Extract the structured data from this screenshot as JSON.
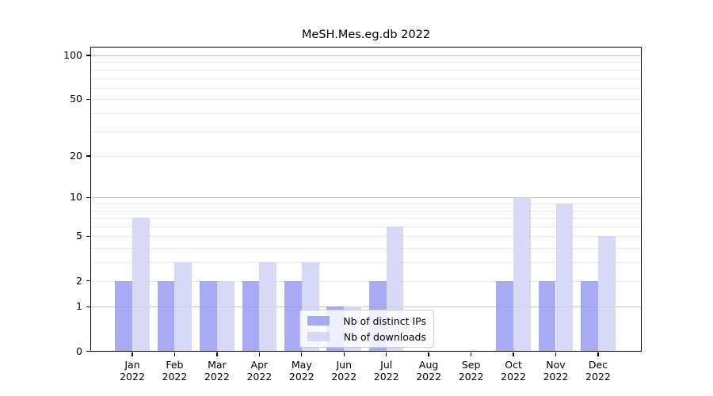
{
  "chart_data": {
    "type": "bar",
    "title": "MeSH.Mes.eg.db 2022",
    "categories": [
      "Jan",
      "Feb",
      "Mar",
      "Apr",
      "May",
      "Jun",
      "Jul",
      "Aug",
      "Sep",
      "Oct",
      "Nov",
      "Dec"
    ],
    "x_tick_second_line": "2022",
    "series": [
      {
        "name": "Nb of distinct IPs",
        "color": "rgba(146,150,240,0.8)",
        "values": [
          2,
          2,
          2,
          2,
          2,
          1,
          2,
          0,
          0,
          2,
          2,
          2
        ]
      },
      {
        "name": "Nb of downloads",
        "color": "rgba(205,208,245,0.8)",
        "values": [
          7,
          3,
          2,
          3,
          3,
          1,
          6,
          0,
          0,
          10,
          9,
          5
        ]
      }
    ],
    "y_axis": {
      "scale": "log1p",
      "ylim": [
        0,
        100
      ],
      "labeled_ticks": [
        0,
        1,
        2,
        5,
        10,
        20,
        50,
        100
      ],
      "major_gridlines": [
        1,
        10,
        100
      ],
      "minor_gridlines": [
        2,
        3,
        4,
        5,
        6,
        7,
        8,
        9,
        20,
        30,
        40,
        50,
        60,
        70,
        80,
        90
      ]
    },
    "legend": {
      "entries": [
        "Nb of distinct IPs",
        "Nb of downloads"
      ],
      "position": "lower center"
    },
    "colors": {
      "bar_distinct_ips": "#a8abf3",
      "bar_downloads": "#d7d9f7",
      "grid_major": "#c3c3c3",
      "grid_minor": "#e9e9e9",
      "axis": "#000000",
      "background": "#ffffff"
    },
    "grid": "on",
    "xlabel": "",
    "ylabel": ""
  }
}
